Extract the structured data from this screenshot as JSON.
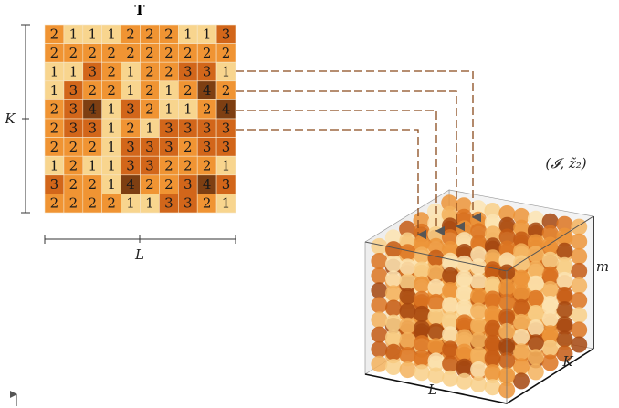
{
  "title": "T",
  "colors": [
    "#f8d58e",
    "#f09433",
    "#d2661a",
    "#7e3f12"
  ],
  "grid": [
    [
      2,
      1,
      1,
      1,
      2,
      2,
      2,
      1,
      1,
      3
    ],
    [
      2,
      2,
      2,
      2,
      2,
      2,
      2,
      2,
      2,
      2
    ],
    [
      1,
      1,
      3,
      2,
      1,
      2,
      2,
      3,
      3,
      1
    ],
    [
      1,
      3,
      2,
      2,
      1,
      2,
      1,
      2,
      4,
      2
    ],
    [
      2,
      3,
      4,
      1,
      3,
      2,
      1,
      1,
      2,
      4
    ],
    [
      2,
      3,
      3,
      1,
      2,
      1,
      3,
      3,
      3,
      3
    ],
    [
      2,
      2,
      2,
      1,
      3,
      3,
      3,
      2,
      3,
      3
    ],
    [
      1,
      2,
      1,
      1,
      3,
      3,
      2,
      2,
      2,
      1
    ],
    [
      3,
      2,
      2,
      1,
      4,
      2,
      2,
      3,
      4,
      3
    ],
    [
      2,
      2,
      2,
      2,
      1,
      1,
      3,
      3,
      2,
      1
    ]
  ],
  "row_label": "K",
  "col_label": "L",
  "cube": {
    "label": "(𝓘, z̃₂)",
    "height_label": "m",
    "depth_label": "K",
    "width_label": "L"
  }
}
